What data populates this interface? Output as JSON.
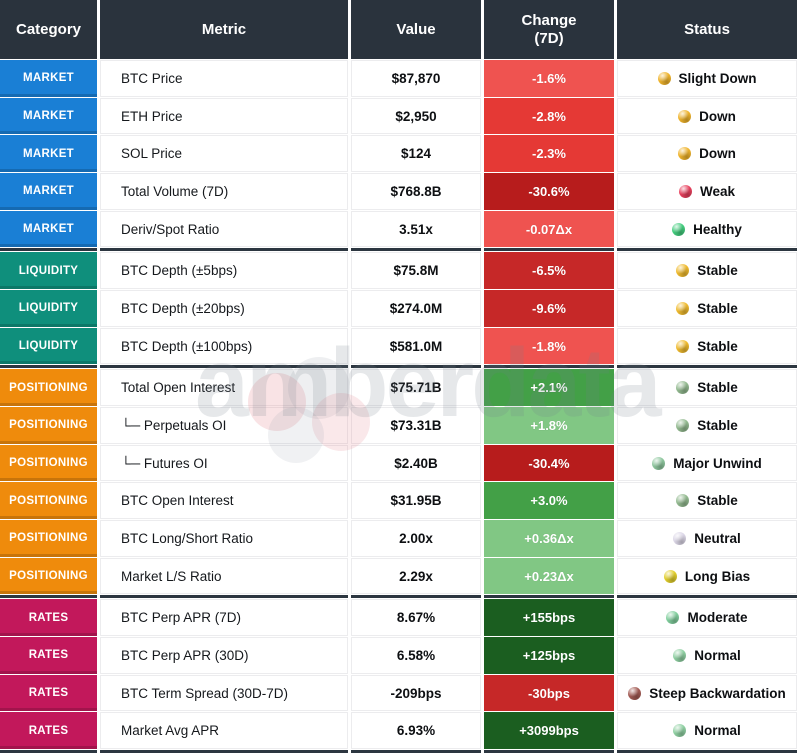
{
  "watermark": {
    "text": "amberdata"
  },
  "header": {
    "category": "Category",
    "metric": "Metric",
    "value": "Value",
    "change": "Change (7D)",
    "status": "Status"
  },
  "category_colors": {
    "MARKET": "#1a7fd5",
    "LIQUIDITY": "#0f8f7c",
    "POSITIONING": "#ef8b0c",
    "RATES": "#c2185b"
  },
  "chart_data": {
    "type": "table",
    "columns": [
      "Category",
      "Metric",
      "Value",
      "Change (7D)",
      "Status"
    ],
    "rows": [
      {
        "category": "MARKET",
        "metric": "BTC Price",
        "value": "$87,870",
        "change": "-1.6%",
        "change_color": "#ef5350",
        "status": "Slight Down",
        "dot_color": "#f0b42c"
      },
      {
        "category": "MARKET",
        "metric": "ETH Price",
        "value": "$2,950",
        "change": "-2.8%",
        "change_color": "#e53935",
        "status": "Down",
        "dot_color": "#f0b42c"
      },
      {
        "category": "MARKET",
        "metric": "SOL Price",
        "value": "$124",
        "change": "-2.3%",
        "change_color": "#e53935",
        "status": "Down",
        "dot_color": "#f0b42c"
      },
      {
        "category": "MARKET",
        "metric": "Total Volume (7D)",
        "value": "$768.8B",
        "change": "-30.6%",
        "change_color": "#b71c1c",
        "status": "Weak",
        "dot_color": "#e8405d"
      },
      {
        "category": "MARKET",
        "metric": "Deriv/Spot Ratio",
        "value": "3.51x",
        "change": "-0.07Δx",
        "change_color": "#ef5350",
        "status": "Healthy",
        "dot_color": "#43cd7e"
      },
      {
        "category": "LIQUIDITY",
        "metric": "BTC Depth (±5bps)",
        "value": "$75.8M",
        "change": "-6.5%",
        "change_color": "#c62828",
        "status": "Stable",
        "dot_color": "#f0bb2f"
      },
      {
        "category": "LIQUIDITY",
        "metric": "BTC Depth (±20bps)",
        "value": "$274.0M",
        "change": "-9.6%",
        "change_color": "#c62828",
        "status": "Stable",
        "dot_color": "#f0bb2f"
      },
      {
        "category": "LIQUIDITY",
        "metric": "BTC Depth (±100bps)",
        "value": "$581.0M",
        "change": "-1.8%",
        "change_color": "#ef5350",
        "status": "Stable",
        "dot_color": "#f0bb2f"
      },
      {
        "category": "POSITIONING",
        "metric": "Total Open Interest",
        "value": "$75.71B",
        "change": "+2.1%",
        "change_color": "#43a047",
        "status": "Stable",
        "dot_color": "#93ba90"
      },
      {
        "category": "POSITIONING",
        "metric": "└─ Perpetuals OI",
        "value": "$73.31B",
        "change": "+1.8%",
        "change_color": "#81c784",
        "status": "Stable",
        "dot_color": "#93ba90"
      },
      {
        "category": "POSITIONING",
        "metric": "└─ Futures OI",
        "value": "$2.40B",
        "change": "-30.4%",
        "change_color": "#b71c1c",
        "status": "Major Unwind",
        "dot_color": "#8ec79e"
      },
      {
        "category": "POSITIONING",
        "metric": "BTC Open Interest",
        "value": "$31.95B",
        "change": "+3.0%",
        "change_color": "#43a047",
        "status": "Stable",
        "dot_color": "#93ba90"
      },
      {
        "category": "POSITIONING",
        "metric": "BTC Long/Short Ratio",
        "value": "2.00x",
        "change": "+0.36Δx",
        "change_color": "#81c784",
        "status": "Neutral",
        "dot_color": "#ddd8e8"
      },
      {
        "category": "POSITIONING",
        "metric": "Market L/S Ratio",
        "value": "2.29x",
        "change": "+0.23Δx",
        "change_color": "#81c784",
        "status": "Long Bias",
        "dot_color": "#e2cf2d"
      },
      {
        "category": "RATES",
        "metric": "BTC Perp APR (7D)",
        "value": "8.67%",
        "change": "+155bps",
        "change_color": "#1b5e20",
        "status": "Moderate",
        "dot_color": "#82cf9e"
      },
      {
        "category": "RATES",
        "metric": "BTC Perp APR (30D)",
        "value": "6.58%",
        "change": "+125bps",
        "change_color": "#1b5e20",
        "status": "Normal",
        "dot_color": "#90d1a3"
      },
      {
        "category": "RATES",
        "metric": "BTC Term Spread (30D-7D)",
        "value": "-209bps",
        "change": "-30bps",
        "change_color": "#c62828",
        "status": "Steep Backwardation",
        "dot_color": "#a25a53"
      },
      {
        "category": "RATES",
        "metric": "Market Avg APR",
        "value": "6.93%",
        "change": "+3099bps",
        "change_color": "#1b5e20",
        "status": "Normal",
        "dot_color": "#90d1a3"
      }
    ]
  }
}
